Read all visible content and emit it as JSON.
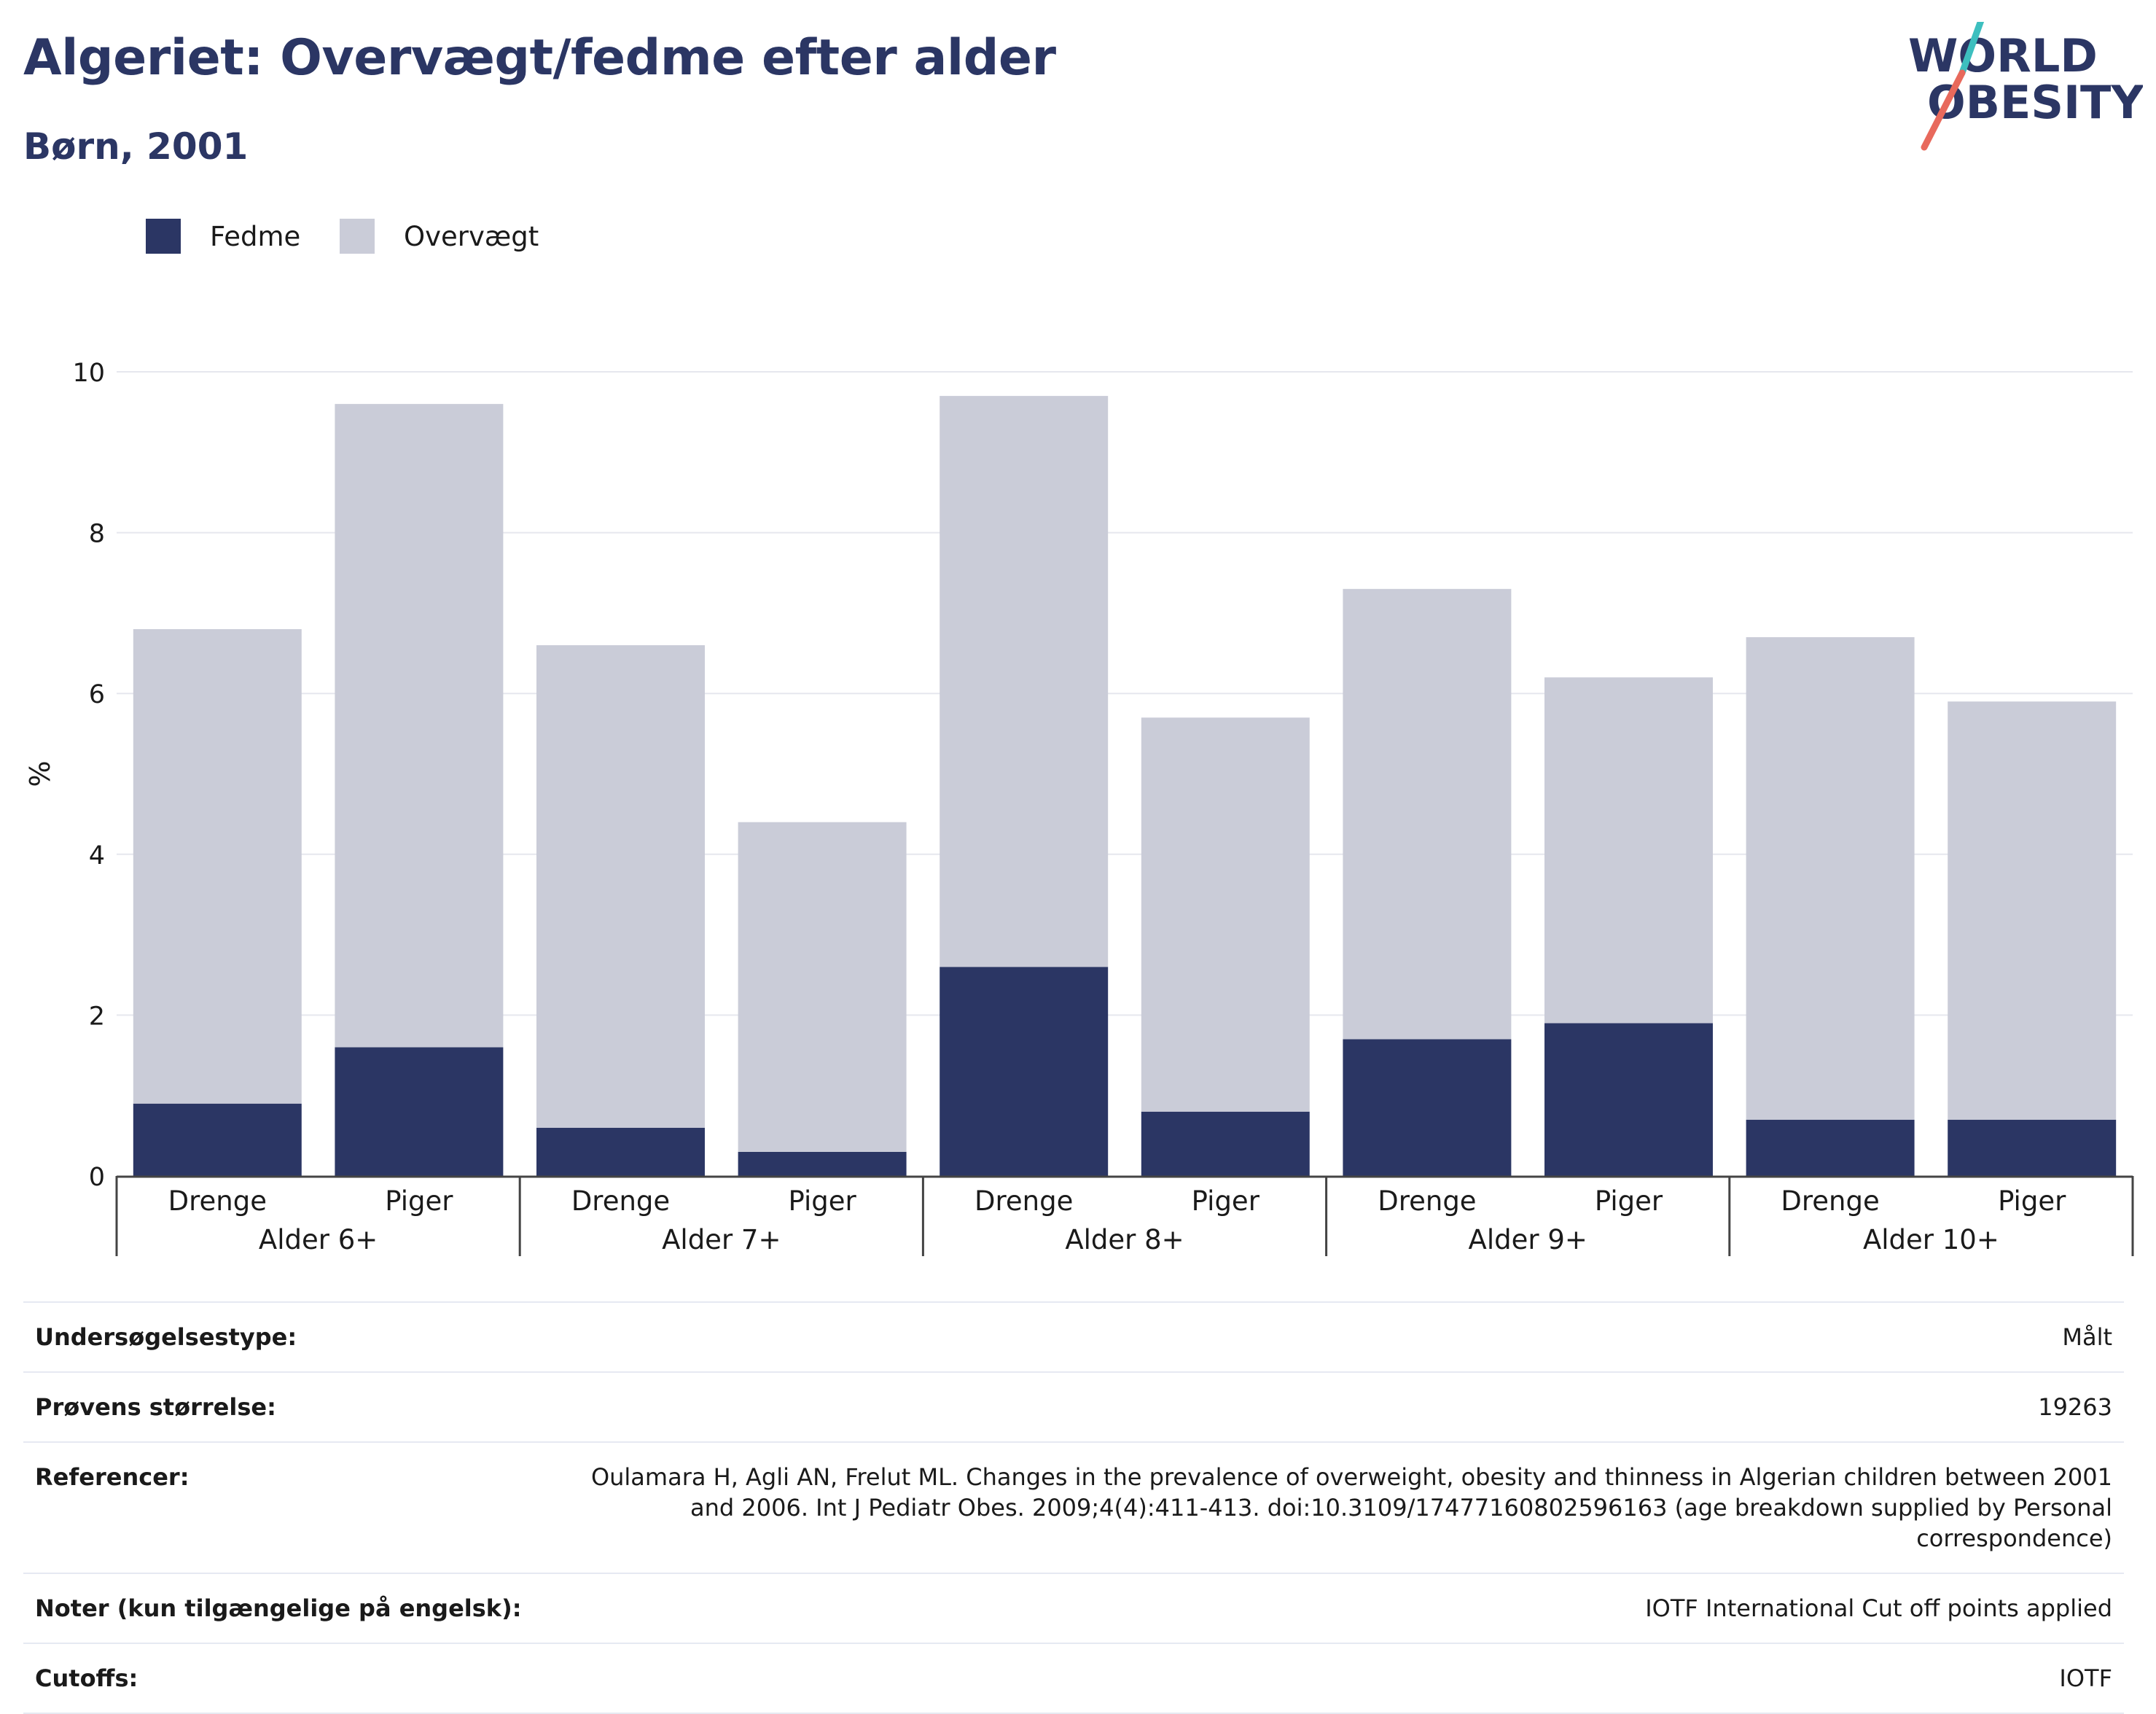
{
  "header": {
    "title": "Algeriet: Overvægt/fedme efter alder",
    "subtitle": "Børn, 2001"
  },
  "logo": {
    "line1": "WORLD",
    "line2": "OBESITY",
    "text_color": "#2b3664",
    "slash_top_color": "#3dbfbf",
    "slash_bottom_color": "#e8695c"
  },
  "colors": {
    "fedme": "#2b3664",
    "overvaegt": "#caccd8",
    "grid": "#e6e7ee",
    "axis": "#444444"
  },
  "legend": [
    {
      "label": "Fedme",
      "color": "#2b3664"
    },
    {
      "label": "Overvægt",
      "color": "#caccd8"
    }
  ],
  "chart_data": {
    "type": "bar",
    "stacked": true,
    "ylabel": "%",
    "ylim": [
      0,
      10
    ],
    "yticks": [
      0,
      2,
      4,
      6,
      8,
      10
    ],
    "grid": true,
    "legend_position": "top-left",
    "groups": [
      "Alder 6+",
      "Alder 7+",
      "Alder 8+",
      "Alder 9+",
      "Alder 10+"
    ],
    "categories": [
      "Drenge",
      "Piger",
      "Drenge",
      "Piger",
      "Drenge",
      "Piger",
      "Drenge",
      "Piger",
      "Drenge",
      "Piger"
    ],
    "series": [
      {
        "name": "Fedme",
        "values": [
          0.9,
          1.6,
          0.6,
          0.3,
          2.6,
          0.8,
          1.7,
          1.9,
          0.7,
          0.7
        ]
      },
      {
        "name": "Overvægt",
        "values": [
          5.9,
          8.0,
          6.0,
          4.1,
          7.1,
          4.9,
          5.6,
          4.3,
          6.0,
          5.2
        ]
      }
    ]
  },
  "info": [
    {
      "label": "Undersøgelsestype:",
      "value": "Målt"
    },
    {
      "label": "Prøvens størrelse:",
      "value": "19263"
    },
    {
      "label": "Referencer:",
      "value": "Oulamara H, Agli AN, Frelut ML. Changes in the prevalence of overweight, obesity and thinness in Algerian children between 2001 and 2006. Int J Pediatr Obes. 2009;4(4):411-413. doi:10.3109/17477160802596163 (age breakdown supplied by Personal correspondence)"
    },
    {
      "label": "Noter (kun tilgængelige på engelsk):",
      "value": "IOTF International Cut off points applied"
    },
    {
      "label": "Cutoffs:",
      "value": "IOTF"
    }
  ]
}
